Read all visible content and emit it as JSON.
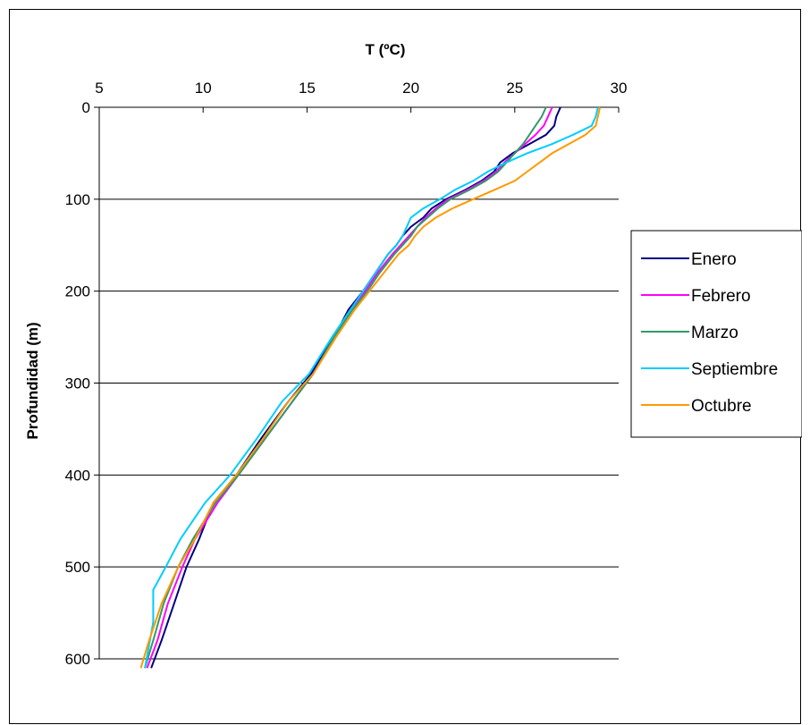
{
  "chart_data": {
    "type": "line",
    "xlabel": "T (ºC)",
    "ylabel": "Profundidad (m)",
    "xlim": [
      5,
      30
    ],
    "ylim": [
      0,
      600
    ],
    "x_ticks": [
      5,
      10,
      15,
      20,
      25,
      30
    ],
    "y_ticks": [
      0,
      100,
      200,
      300,
      400,
      500,
      600
    ],
    "x_axis_position": "top",
    "y_axis_inverted": true,
    "grid": "horizontal major gridlines",
    "legend_position": "right",
    "series": [
      {
        "name": "Enero",
        "color": "#000080",
        "points": [
          [
            27.2,
            0
          ],
          [
            27.0,
            10
          ],
          [
            26.9,
            20
          ],
          [
            26.5,
            30
          ],
          [
            25.7,
            40
          ],
          [
            24.9,
            50
          ],
          [
            24.3,
            60
          ],
          [
            24.0,
            70
          ],
          [
            23.4,
            80
          ],
          [
            22.6,
            90
          ],
          [
            21.7,
            100
          ],
          [
            21.0,
            110
          ],
          [
            20.6,
            120
          ],
          [
            20.0,
            130
          ],
          [
            19.6,
            140
          ],
          [
            19.3,
            150
          ],
          [
            18.9,
            160
          ],
          [
            18.3,
            180
          ],
          [
            17.7,
            200
          ],
          [
            17.0,
            220
          ],
          [
            16.3,
            250
          ],
          [
            15.2,
            290
          ],
          [
            14.1,
            320
          ],
          [
            12.8,
            360
          ],
          [
            11.6,
            400
          ],
          [
            10.5,
            430
          ],
          [
            9.8,
            470
          ],
          [
            9.2,
            500
          ],
          [
            8.6,
            540
          ],
          [
            8.0,
            580
          ],
          [
            7.5,
            610
          ]
        ]
      },
      {
        "name": "Febrero",
        "color": "#ff00ff",
        "points": [
          [
            26.8,
            0
          ],
          [
            26.6,
            10
          ],
          [
            26.4,
            20
          ],
          [
            26.0,
            30
          ],
          [
            25.5,
            40
          ],
          [
            25.0,
            50
          ],
          [
            24.5,
            60
          ],
          [
            24.1,
            70
          ],
          [
            23.5,
            80
          ],
          [
            22.7,
            90
          ],
          [
            21.8,
            100
          ],
          [
            21.2,
            110
          ],
          [
            20.7,
            120
          ],
          [
            20.3,
            130
          ],
          [
            19.9,
            140
          ],
          [
            19.5,
            150
          ],
          [
            19.1,
            160
          ],
          [
            18.4,
            180
          ],
          [
            17.8,
            200
          ],
          [
            17.1,
            220
          ],
          [
            16.3,
            250
          ],
          [
            15.3,
            290
          ],
          [
            14.3,
            320
          ],
          [
            13.0,
            360
          ],
          [
            11.7,
            400
          ],
          [
            10.7,
            430
          ],
          [
            9.6,
            470
          ],
          [
            9.0,
            500
          ],
          [
            8.3,
            540
          ],
          [
            7.8,
            580
          ],
          [
            7.3,
            610
          ]
        ]
      },
      {
        "name": "Marzo",
        "color": "#339966",
        "points": [
          [
            26.5,
            0
          ],
          [
            26.3,
            10
          ],
          [
            26.0,
            20
          ],
          [
            25.7,
            30
          ],
          [
            25.4,
            40
          ],
          [
            25.0,
            50
          ],
          [
            24.6,
            60
          ],
          [
            24.2,
            70
          ],
          [
            23.6,
            80
          ],
          [
            22.8,
            90
          ],
          [
            21.9,
            100
          ],
          [
            21.3,
            110
          ],
          [
            20.8,
            120
          ],
          [
            20.3,
            130
          ],
          [
            20.0,
            140
          ],
          [
            19.6,
            150
          ],
          [
            19.2,
            160
          ],
          [
            18.5,
            180
          ],
          [
            17.9,
            200
          ],
          [
            17.2,
            220
          ],
          [
            16.3,
            250
          ],
          [
            15.3,
            290
          ],
          [
            14.3,
            320
          ],
          [
            13.0,
            360
          ],
          [
            11.7,
            400
          ],
          [
            10.6,
            430
          ],
          [
            9.5,
            470
          ],
          [
            8.8,
            500
          ],
          [
            8.1,
            540
          ],
          [
            7.6,
            580
          ],
          [
            7.2,
            610
          ]
        ]
      },
      {
        "name": "Septiembre",
        "color": "#00ccff",
        "points": [
          [
            29.0,
            0
          ],
          [
            28.9,
            10
          ],
          [
            28.7,
            20
          ],
          [
            27.8,
            30
          ],
          [
            26.8,
            40
          ],
          [
            25.6,
            50
          ],
          [
            24.6,
            60
          ],
          [
            23.7,
            70
          ],
          [
            23.0,
            80
          ],
          [
            22.1,
            90
          ],
          [
            21.4,
            100
          ],
          [
            20.6,
            110
          ],
          [
            20.0,
            120
          ],
          [
            19.8,
            130
          ],
          [
            19.6,
            140
          ],
          [
            19.3,
            150
          ],
          [
            18.9,
            160
          ],
          [
            18.3,
            180
          ],
          [
            17.7,
            200
          ],
          [
            17.1,
            220
          ],
          [
            16.2,
            250
          ],
          [
            15.1,
            290
          ],
          [
            13.8,
            320
          ],
          [
            12.6,
            360
          ],
          [
            11.3,
            400
          ],
          [
            10.1,
            430
          ],
          [
            8.9,
            470
          ],
          [
            8.2,
            500
          ],
          [
            7.6,
            525
          ],
          [
            7.6,
            560
          ],
          [
            7.2,
            610
          ]
        ]
      },
      {
        "name": "Octubre",
        "color": "#ff9900",
        "points": [
          [
            29.1,
            0
          ],
          [
            29.0,
            10
          ],
          [
            28.9,
            20
          ],
          [
            28.4,
            30
          ],
          [
            27.6,
            40
          ],
          [
            26.8,
            50
          ],
          [
            26.2,
            60
          ],
          [
            25.6,
            70
          ],
          [
            25.0,
            80
          ],
          [
            24.0,
            90
          ],
          [
            23.0,
            100
          ],
          [
            22.0,
            110
          ],
          [
            21.2,
            120
          ],
          [
            20.6,
            130
          ],
          [
            20.2,
            140
          ],
          [
            19.9,
            150
          ],
          [
            19.4,
            160
          ],
          [
            18.7,
            180
          ],
          [
            18.0,
            200
          ],
          [
            17.3,
            220
          ],
          [
            16.4,
            250
          ],
          [
            15.3,
            290
          ],
          [
            14.1,
            320
          ],
          [
            12.9,
            360
          ],
          [
            11.6,
            400
          ],
          [
            10.5,
            430
          ],
          [
            9.6,
            470
          ],
          [
            8.8,
            500
          ],
          [
            8.0,
            540
          ],
          [
            7.4,
            580
          ],
          [
            7.0,
            610
          ]
        ]
      }
    ]
  }
}
